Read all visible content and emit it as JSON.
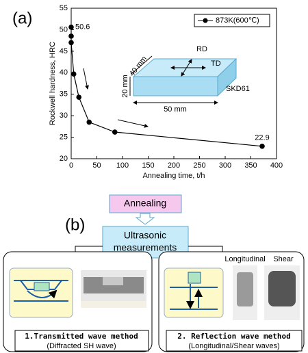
{
  "chart_data": {
    "type": "line",
    "panel_label": "(a)",
    "x_label": "Annealing time, t/h",
    "y_label": "Rockwell hardness, HRC",
    "xlim": [
      0,
      400
    ],
    "xticks": [
      0,
      50,
      100,
      150,
      200,
      250,
      300,
      350,
      400
    ],
    "ylim": [
      20,
      55
    ],
    "yticks": [
      20,
      25,
      30,
      35,
      40,
      45,
      50,
      55
    ],
    "legend": "upper right",
    "series": [
      {
        "name": "873K(600℃)",
        "color": "#000000",
        "x": [
          0,
          0,
          0,
          5,
          15,
          35,
          85,
          372
        ],
        "values": [
          50.6,
          48.5,
          47,
          39.7,
          34.3,
          28.5,
          26.2,
          22.9
        ],
        "value_labels": [
          "50.6",
          null,
          null,
          null,
          null,
          null,
          null,
          "22.9"
        ]
      }
    ],
    "annotations": [
      "RD",
      "TD",
      "40 mm",
      "20 mm",
      "50 mm",
      "SKD61"
    ]
  },
  "diagram": {
    "panel_label": "(b)",
    "process": "Annealing",
    "measurement": [
      "Ultrasonic",
      "measurements"
    ],
    "methods": [
      {
        "title": "1.Transmitted wave method",
        "subtitle": "(Diffracted SH wave)"
      },
      {
        "title": "2. Reflection wave method",
        "subtitle": "(Longitudinal/Shear waves)",
        "probes": [
          "Longitudinal",
          "Shear"
        ]
      }
    ]
  }
}
